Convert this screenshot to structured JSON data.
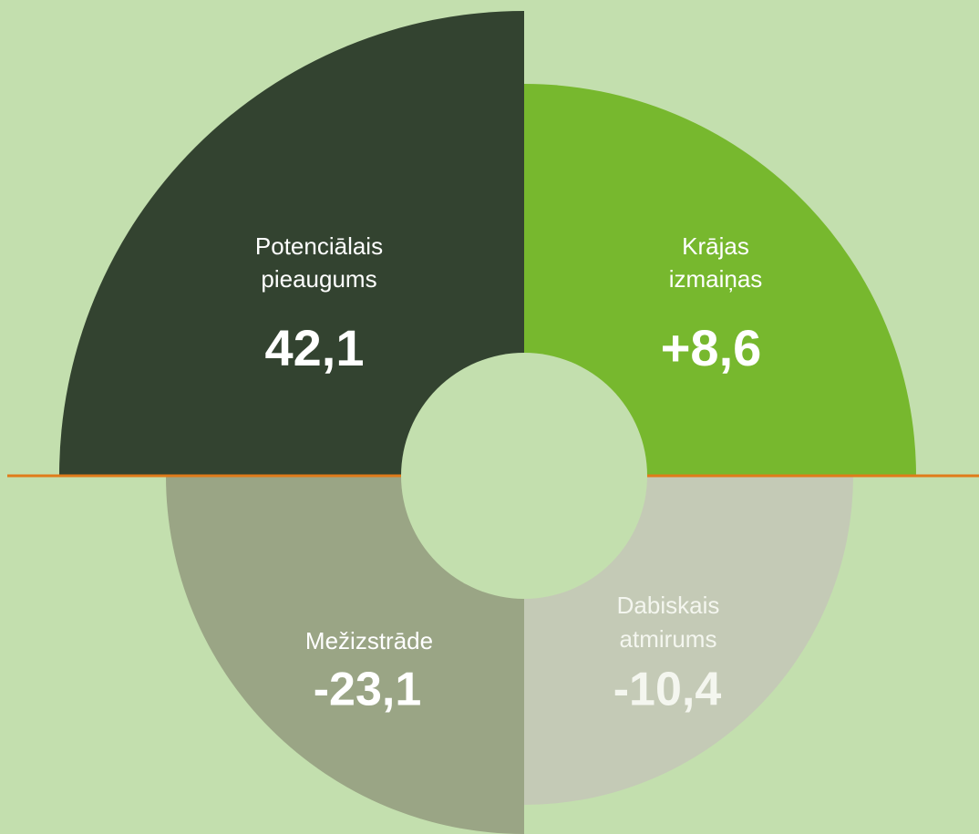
{
  "segments": [
    {
      "label_lines": [
        "Potenciālais",
        "pieaugums"
      ],
      "value": "42,1"
    },
    {
      "label_lines": [
        "Krājas",
        "izmaiņas"
      ],
      "value": "+8,6"
    },
    {
      "label_lines": [
        "Mežizstrāde"
      ],
      "value": "-23,1"
    },
    {
      "label_lines": [
        "Dabiskais",
        "atmirums"
      ],
      "value": "-10,4"
    }
  ]
}
